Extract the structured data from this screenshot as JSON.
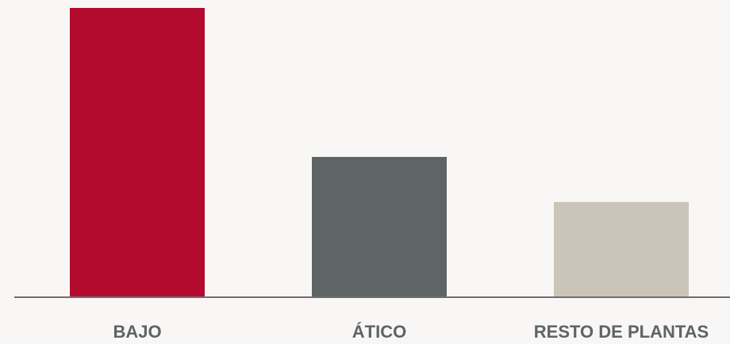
{
  "chart_data": {
    "type": "bar",
    "title": "",
    "xlabel": "",
    "ylabel": "",
    "categories": [
      "BAJO",
      "ÁTICO",
      "RESTO DE PLANTAS"
    ],
    "values": [
      100,
      48.5,
      32.9
    ],
    "ylim": [
      0,
      100
    ],
    "grid": false,
    "legend": "none",
    "colors": [
      "#b20b2e",
      "#5d6566",
      "#cbc4b9"
    ],
    "baseline_color": "#6e6e6e",
    "label_color": "#5d6466",
    "background": "#f8f7f5"
  }
}
